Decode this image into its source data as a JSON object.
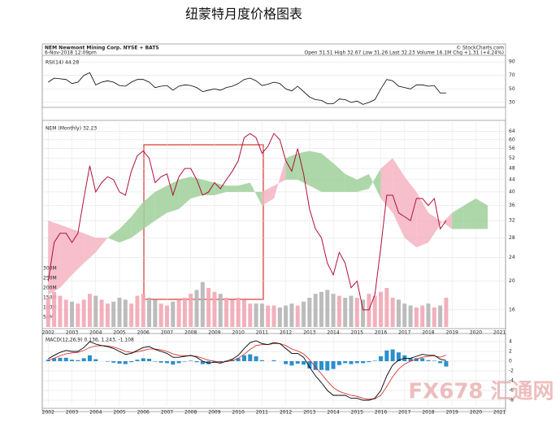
{
  "header": {
    "title": "纽蒙特月度价格图表",
    "symbol": "NEM Newmont Mining Corp. NYSE + BATS",
    "date": "6-Nov-2018 12:09pm",
    "quote": "Open 31.51 High 32.67 Low 31.26 Last 32.23 Volume 16.1M Chg +1.31 (+4.24%)",
    "credit": "© StockCharts.com",
    "watermark": "FX678 汇通网"
  },
  "chart_data": [
    {
      "type": "line",
      "title": "RSI(14) 44.28",
      "color": "#000000",
      "xlim": [
        2001.75,
        2021.25
      ],
      "ylim": [
        25,
        95
      ],
      "yticks": [
        30,
        50,
        70,
        90
      ],
      "grid": true,
      "x": [
        2002,
        2002.25,
        2002.5,
        2002.75,
        2003,
        2003.25,
        2003.5,
        2003.75,
        2004,
        2004.25,
        2004.5,
        2004.75,
        2005,
        2005.25,
        2005.5,
        2005.75,
        2006,
        2006.25,
        2006.5,
        2006.75,
        2007,
        2007.25,
        2007.5,
        2007.75,
        2008,
        2008.25,
        2008.5,
        2008.75,
        2009,
        2009.25,
        2009.5,
        2009.75,
        2010,
        2010.25,
        2010.5,
        2010.75,
        2011,
        2011.25,
        2011.5,
        2011.75,
        2012,
        2012.25,
        2012.5,
        2012.75,
        2013,
        2013.25,
        2013.5,
        2013.75,
        2014,
        2014.25,
        2014.5,
        2014.75,
        2015,
        2015.25,
        2015.5,
        2015.75,
        2016,
        2016.25,
        2016.5,
        2016.75,
        2017,
        2017.25,
        2017.5,
        2017.75,
        2018,
        2018.25,
        2018.5,
        2018.75
      ],
      "values": [
        60,
        66,
        65,
        64,
        58,
        60,
        70,
        74,
        56,
        60,
        62,
        60,
        55,
        54,
        60,
        64,
        64,
        60,
        52,
        54,
        55,
        48,
        54,
        56,
        55,
        52,
        46,
        48,
        50,
        48,
        52,
        54,
        58,
        64,
        66,
        62,
        55,
        57,
        60,
        58,
        50,
        47,
        54,
        46,
        38,
        34,
        33,
        28,
        28,
        35,
        34,
        30,
        32,
        27,
        30,
        34,
        50,
        64,
        62,
        54,
        52,
        50,
        56,
        56,
        54,
        55,
        44,
        44
      ]
    },
    {
      "type": "line",
      "log_scale": true,
      "xlim": [
        2001.75,
        2021.25
      ],
      "ylim": [
        14,
        68
      ],
      "yticks": [
        16,
        20,
        24,
        28,
        32,
        36,
        40,
        44,
        48,
        52,
        56,
        60,
        64
      ],
      "grid": true,
      "xticks": [
        2002,
        2003,
        2004,
        2005,
        2006,
        2007,
        2008,
        2009,
        2010,
        2011,
        2012,
        2013,
        2014,
        2015,
        2016,
        2017,
        2018,
        2019,
        2020,
        2021
      ],
      "x": [
        2002,
        2002.25,
        2002.5,
        2002.75,
        2003,
        2003.25,
        2003.5,
        2003.75,
        2004,
        2004.25,
        2004.5,
        2004.75,
        2005,
        2005.25,
        2005.5,
        2005.75,
        2006,
        2006.25,
        2006.5,
        2006.75,
        2007,
        2007.25,
        2007.5,
        2007.75,
        2008,
        2008.25,
        2008.5,
        2008.75,
        2009,
        2009.25,
        2009.5,
        2009.75,
        2010,
        2010.25,
        2010.5,
        2010.75,
        2011,
        2011.25,
        2011.5,
        2011.75,
        2012,
        2012.25,
        2012.5,
        2012.75,
        2013,
        2013.25,
        2013.5,
        2013.75,
        2014,
        2014.25,
        2014.5,
        2014.75,
        2015,
        2015.25,
        2015.5,
        2015.75,
        2016,
        2016.25,
        2016.5,
        2016.75,
        2017,
        2017.25,
        2017.5,
        2017.75,
        2018,
        2018.25,
        2018.5,
        2018.75
      ],
      "series": [
        {
          "name": "NEM (Monthly) 32.23",
          "color": "#b0103a",
          "values": [
            20,
            27,
            29,
            29,
            27,
            29,
            38,
            49,
            40,
            43,
            45,
            44,
            40,
            39,
            47,
            53,
            55,
            52,
            43,
            45,
            46,
            39,
            45,
            48,
            48,
            44,
            39,
            40,
            43,
            41,
            44,
            47,
            51,
            61,
            63,
            61,
            54,
            57,
            63,
            60,
            51,
            47,
            56,
            46,
            35,
            30,
            28,
            23,
            21,
            25,
            23,
            19,
            20,
            16,
            16,
            18,
            26,
            39,
            39,
            34,
            33,
            32,
            38,
            38,
            36,
            38,
            30,
            32
          ]
        }
      ],
      "volume": {
        "ylim": [
          0,
          300
        ],
        "up_color": "#f2a7b5",
        "down_color": "#b5b5b5",
        "yticks": [
          {
            "value": 50,
            "label": "50M"
          },
          {
            "value": 100,
            "label": "100M"
          },
          {
            "value": 150,
            "label": "150M"
          },
          {
            "value": 200,
            "label": "200M"
          },
          {
            "value": 250,
            "label": "250M"
          },
          {
            "value": 300,
            "label": "300M"
          }
        ],
        "values": [
          150,
          180,
          160,
          140,
          130,
          120,
          140,
          170,
          160,
          140,
          120,
          130,
          150,
          140,
          120,
          160,
          170,
          150,
          140,
          120,
          110,
          130,
          140,
          150,
          170,
          190,
          230,
          200,
          180,
          170,
          150,
          140,
          150,
          140,
          120,
          120,
          120,
          110,
          110,
          100,
          110,
          120,
          110,
          130,
          150,
          170,
          180,
          190,
          170,
          160,
          150,
          160,
          150,
          140,
          170,
          160,
          180,
          200,
          150,
          140,
          120,
          110,
          100,
          110,
          120,
          100,
          110,
          150
        ]
      },
      "cloud": {
        "bull_color": "#9fd09a",
        "bear_color": "#f4b4c2",
        "x": [
          2002,
          2002.5,
          2003,
          2003.5,
          2004,
          2004.5,
          2005,
          2005.5,
          2006,
          2006.5,
          2007,
          2007.5,
          2008,
          2008.5,
          2009,
          2009.5,
          2010,
          2010.5,
          2011,
          2011.5,
          2012,
          2012.5,
          2013,
          2013.5,
          2014,
          2014.5,
          2015,
          2015.5,
          2016,
          2016.5,
          2017,
          2017.5,
          2018,
          2018.5,
          2019,
          2019.5,
          2020,
          2020.5
        ],
        "span_a": [
          18,
          19,
          21,
          23,
          25,
          28,
          30,
          33,
          37,
          40,
          42,
          44,
          45,
          44,
          43,
          42,
          42,
          43,
          36,
          38,
          52,
          54,
          55,
          54,
          50,
          46,
          44,
          46,
          38,
          34,
          28,
          26,
          27,
          31,
          34,
          36,
          38,
          36
        ],
        "span_b": [
          32,
          31,
          30,
          29,
          28,
          28,
          27,
          28,
          30,
          32,
          34,
          35,
          38,
          39,
          39,
          40,
          40,
          40,
          40,
          42,
          44,
          44,
          42,
          40,
          40,
          40,
          40,
          41,
          48,
          52,
          45,
          40,
          34,
          32,
          30,
          30,
          30,
          30
        ]
      }
    },
    {
      "type": "line",
      "title": "MACD(12,26,9) 0.136, 1.243, -1.108",
      "xlim": [
        2001.75,
        2021.25
      ],
      "ylim": [
        -9,
        5
      ],
      "yticks": [
        4,
        2,
        0,
        -2,
        -4,
        -6,
        -8
      ],
      "grid": true,
      "xticks": [
        2002,
        2003,
        2004,
        2005,
        2006,
        2007,
        2008,
        2009,
        2010,
        2011,
        2012,
        2013,
        2014,
        2015,
        2016,
        2017,
        2018,
        2019,
        2020,
        2021
      ],
      "x": [
        2002,
        2002.25,
        2002.5,
        2002.75,
        2003,
        2003.25,
        2003.5,
        2003.75,
        2004,
        2004.25,
        2004.5,
        2004.75,
        2005,
        2005.25,
        2005.5,
        2005.75,
        2006,
        2006.25,
        2006.5,
        2006.75,
        2007,
        2007.25,
        2007.5,
        2007.75,
        2008,
        2008.25,
        2008.5,
        2008.75,
        2009,
        2009.25,
        2009.5,
        2009.75,
        2010,
        2010.25,
        2010.5,
        2010.75,
        2011,
        2011.25,
        2011.5,
        2011.75,
        2012,
        2012.25,
        2012.5,
        2012.75,
        2013,
        2013.25,
        2013.5,
        2013.75,
        2014,
        2014.25,
        2014.5,
        2014.75,
        2015,
        2015.25,
        2015.5,
        2015.75,
        2016,
        2016.25,
        2016.5,
        2016.75,
        2017,
        2017.25,
        2017.5,
        2017.75,
        2018,
        2018.25,
        2018.5,
        2018.75
      ],
      "macd": {
        "color": "#000000",
        "values": [
          0.5,
          1.2,
          1.8,
          2.2,
          2.0,
          2.0,
          2.8,
          4.0,
          3.5,
          3.2,
          3.0,
          2.6,
          2.0,
          1.4,
          1.6,
          2.2,
          2.8,
          3.0,
          2.4,
          2.0,
          1.6,
          0.8,
          0.8,
          1.0,
          1.2,
          0.8,
          0,
          -0.4,
          -0.2,
          -0.4,
          0,
          0.4,
          1.2,
          2.6,
          3.8,
          4.2,
          3.6,
          3.4,
          3.8,
          3.6,
          2.6,
          1.6,
          1.6,
          0.8,
          -1.2,
          -3.0,
          -4.4,
          -6.0,
          -7.0,
          -7.0,
          -7.0,
          -7.6,
          -7.6,
          -8.0,
          -8.0,
          -7.6,
          -6.0,
          -3.0,
          -0.8,
          0.2,
          0.6,
          0.6,
          1.0,
          1.4,
          1.2,
          1.2,
          0.4,
          0.14
        ]
      },
      "signal": {
        "color": "#d22020",
        "values": [
          0.2,
          0.6,
          1.1,
          1.5,
          1.7,
          1.8,
          2.2,
          2.8,
          3.1,
          3.2,
          3.1,
          2.9,
          2.5,
          2.0,
          1.8,
          1.9,
          2.2,
          2.5,
          2.5,
          2.3,
          2.0,
          1.5,
          1.2,
          1.1,
          1.1,
          1.0,
          0.6,
          0.2,
          0,
          -0.2,
          -0.1,
          0.1,
          0.6,
          1.4,
          2.4,
          3.2,
          3.4,
          3.4,
          3.6,
          3.6,
          3.2,
          2.5,
          2.1,
          1.5,
          0.3,
          -1.2,
          -2.6,
          -4.1,
          -5.4,
          -6.2,
          -6.6,
          -7.0,
          -7.2,
          -7.6,
          -7.8,
          -7.7,
          -7.0,
          -5.2,
          -3.2,
          -1.6,
          -0.6,
          0,
          0.4,
          0.8,
          1.0,
          1.1,
          0.8,
          1.24
        ]
      },
      "histogram": {
        "color": "#2b8fcb",
        "values": [
          0.3,
          0.6,
          0.7,
          0.7,
          0.3,
          0.2,
          0.6,
          1.2,
          0.4,
          0,
          -0.1,
          -0.3,
          -0.5,
          -0.6,
          -0.2,
          0.3,
          0.6,
          0.5,
          -0.1,
          -0.3,
          -0.4,
          -0.7,
          -0.4,
          -0.1,
          0.1,
          -0.2,
          -0.6,
          -0.6,
          -0.2,
          -0.2,
          0.1,
          0.3,
          0.6,
          1.2,
          1.4,
          1.0,
          0.2,
          0,
          0.2,
          0,
          -0.6,
          -0.9,
          -0.5,
          -0.7,
          -1.5,
          -1.8,
          -1.8,
          -1.9,
          -1.6,
          -0.8,
          -0.4,
          -0.6,
          -0.4,
          -0.4,
          -0.2,
          0.1,
          1.0,
          2.2,
          2.4,
          1.8,
          1.2,
          0.6,
          0.6,
          0.6,
          0.2,
          0.1,
          -0.4,
          -1.1
        ]
      }
    }
  ]
}
